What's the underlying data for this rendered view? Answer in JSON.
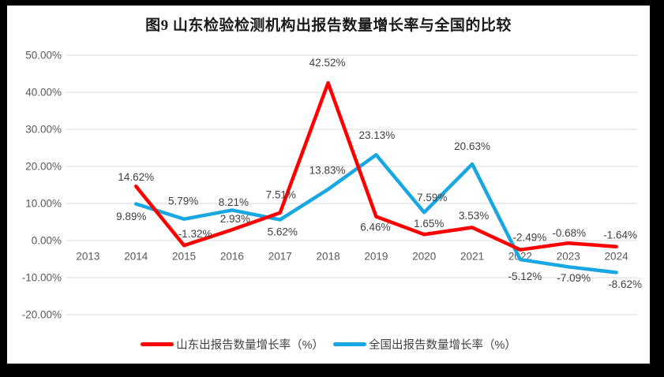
{
  "page": {
    "background": "#000000",
    "card_background": "#ffffff"
  },
  "header": {
    "title": "图9  山东检验检测机构出报告数量增长率与全国的比较"
  },
  "chart_data": {
    "type": "line",
    "title": "图9  山东检验检测机构出报告数量增长率与全国的比较",
    "categories": [
      "2013",
      "2014",
      "2015",
      "2016",
      "2017",
      "2018",
      "2019",
      "2020",
      "2021",
      "2022",
      "2023",
      "2024"
    ],
    "series": [
      {
        "name": "山东出报告数量增长率（%）",
        "color": "#fe0000",
        "values": [
          null,
          14.62,
          -1.32,
          2.93,
          7.51,
          42.52,
          6.46,
          1.65,
          3.53,
          -2.49,
          -0.68,
          -1.64
        ],
        "label_offsets": [
          null,
          [
            0,
            -12
          ],
          [
            14,
            -15
          ],
          [
            4,
            -14
          ],
          [
            1,
            -23
          ],
          [
            -1,
            -26
          ],
          [
            -1,
            13
          ],
          [
            6,
            -14
          ],
          [
            2,
            -15
          ],
          [
            12,
            -16
          ],
          [
            1,
            -13
          ],
          [
            5,
            -15
          ]
        ]
      },
      {
        "name": "全国出报告数量增长率（%）",
        "color": "#18a7e3",
        "values": [
          null,
          9.89,
          5.79,
          8.21,
          5.62,
          13.83,
          23.13,
          7.59,
          20.63,
          -5.12,
          -7.09,
          -8.62
        ],
        "label_offsets": [
          null,
          [
            -6,
            16
          ],
          [
            -1,
            -23
          ],
          [
            2,
            -10
          ],
          [
            3,
            15
          ],
          [
            -1,
            -24
          ],
          [
            1,
            -25
          ],
          [
            10,
            -19
          ],
          [
            0,
            -23
          ],
          [
            6,
            21
          ],
          [
            7,
            14
          ],
          [
            11,
            15
          ]
        ]
      }
    ],
    "y_axis": {
      "min": -20,
      "max": 50,
      "step": 10,
      "tick_labels": [
        "50.00%",
        "40.00%",
        "30.00%",
        "20.00%",
        "10.00%",
        "0.00%",
        "-10.00%",
        "-20.00%"
      ]
    },
    "grid": true,
    "gridline_color": "#d9d9d9",
    "tick_label_color": "#595959",
    "data_label_color": "#404040",
    "data_labels": true,
    "label_format": "0.00%",
    "legend_position": "bottom"
  },
  "legend": {
    "items": [
      {
        "label": "山东出报告数量增长率（%）",
        "color": "#fe0000"
      },
      {
        "label": "全国出报告数量增长率（%）",
        "color": "#18a7e3"
      }
    ]
  }
}
